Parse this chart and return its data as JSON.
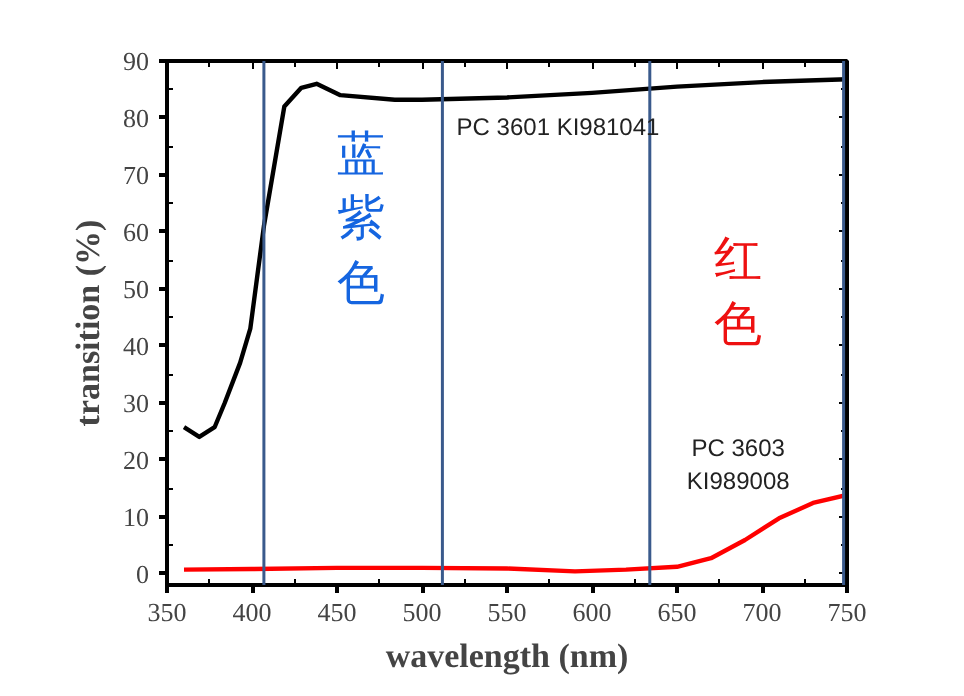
{
  "chart_data": {
    "type": "line",
    "xlabel": "wavelength (nm)",
    "ylabel": "transition (%)",
    "xlim": [
      350,
      750
    ],
    "ylim": [
      -2,
      90
    ],
    "xticks": [
      350,
      400,
      450,
      500,
      550,
      600,
      650,
      700,
      750
    ],
    "yticks": [
      0,
      10,
      20,
      30,
      40,
      50,
      60,
      70,
      80,
      90
    ],
    "line_style": "solid",
    "series": [
      {
        "color": "#000000",
        "x": [
          360,
          369,
          378,
          384,
          393,
          399,
          407,
          419,
          429,
          438,
          452,
          484,
          500,
          550,
          600,
          650,
          700,
          750
        ],
        "values": [
          25.7,
          24,
          25.7,
          30,
          37,
          43,
          61,
          82,
          85.3,
          86,
          84,
          83.2,
          83.2,
          83.6,
          84.4,
          85.5,
          86.3,
          86.8
        ]
      },
      {
        "color": "#ff0000",
        "x": [
          360,
          400,
          450,
          500,
          550,
          590,
          620,
          650,
          670,
          690,
          710,
          730,
          750
        ],
        "values": [
          0.7,
          0.8,
          1,
          1,
          0.9,
          0.4,
          0.7,
          1.2,
          2.7,
          5.9,
          9.7,
          12.4,
          13.8
        ]
      }
    ],
    "ref_lines": [
      {
        "axis": "x",
        "value": 407,
        "color": "#3a5a8c"
      },
      {
        "axis": "x",
        "value": 512,
        "color": "#3a5a8c"
      },
      {
        "axis": "x",
        "value": 634,
        "color": "#3a5a8c"
      },
      {
        "axis": "x",
        "value": 748,
        "color": "#3a5a8c"
      }
    ],
    "annotations": [
      "PC 3601 KI981041",
      "蓝紫色",
      "红色",
      "PC 3603\nKI989008"
    ]
  }
}
